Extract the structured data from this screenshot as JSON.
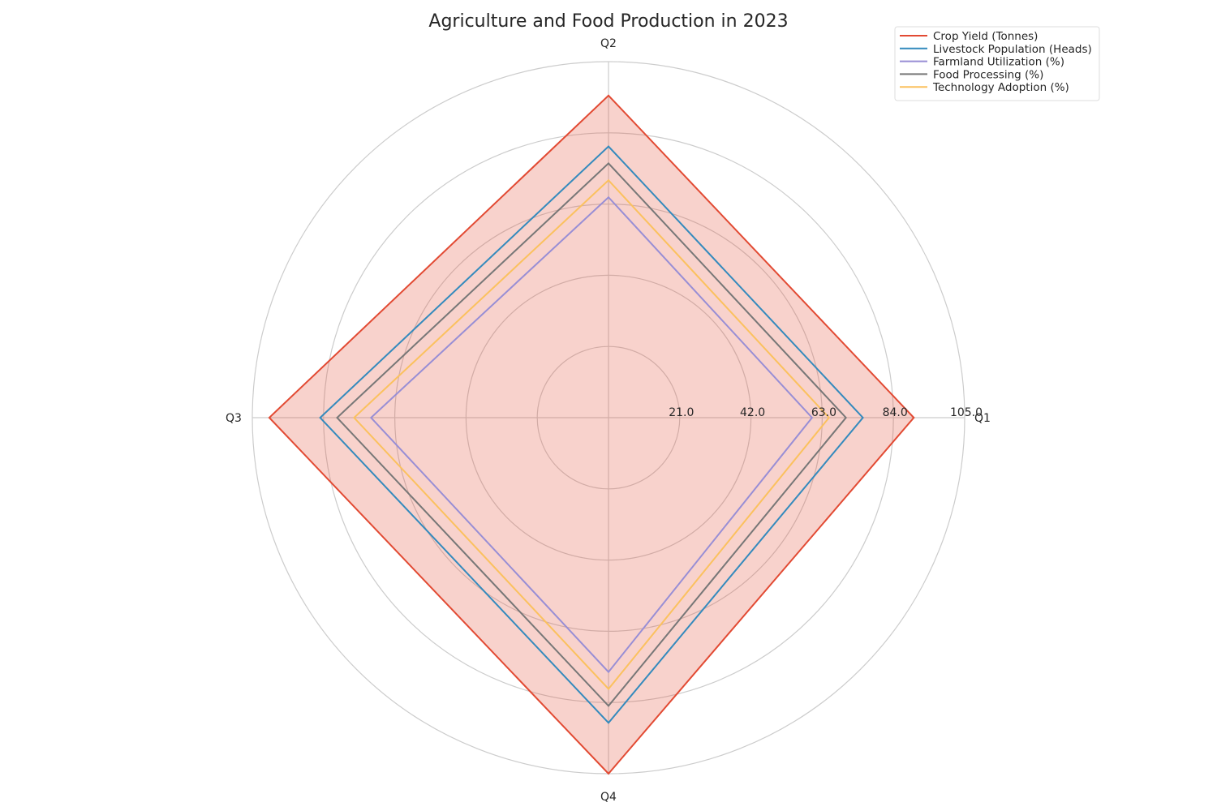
{
  "chart_data": {
    "type": "radar",
    "title": "Agriculture and Food Production in 2023",
    "categories": [
      "Q1",
      "Q2",
      "Q3",
      "Q4"
    ],
    "rlim": [
      0,
      105
    ],
    "radial_ticks": [
      21,
      42,
      63,
      84,
      105
    ],
    "radial_tick_labels": [
      "21.0",
      "42.0",
      "63.0",
      "84.0",
      "105.0"
    ],
    "grid": true,
    "legend_position": "top-right",
    "series": [
      {
        "name": "Crop Yield (Tonnes)",
        "values": [
          90,
          95,
          100,
          105
        ],
        "color": "#e24a33",
        "fill": true
      },
      {
        "name": "Livestock Population (Heads)",
        "values": [
          75,
          80,
          85,
          90
        ],
        "color": "#348abd",
        "fill": false
      },
      {
        "name": "Farmland Utilization (%)",
        "values": [
          60,
          65,
          70,
          75
        ],
        "color": "#988ed5",
        "fill": false
      },
      {
        "name": "Food Processing (%)",
        "values": [
          70,
          75,
          80,
          85
        ],
        "color": "#777777",
        "fill": false
      },
      {
        "name": "Technology Adoption (%)",
        "values": [
          65,
          70,
          75,
          80
        ],
        "color": "#fbc15e",
        "fill": false
      }
    ]
  }
}
